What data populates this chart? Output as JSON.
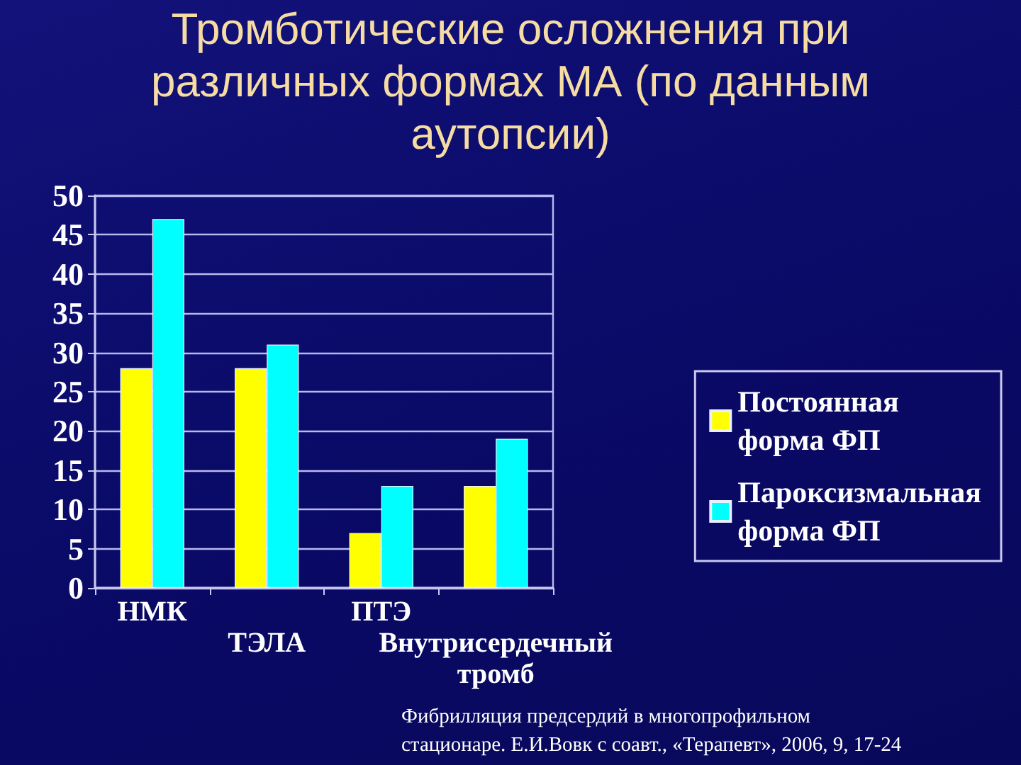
{
  "chart_data": {
    "type": "bar",
    "title": "Тромботические осложнения при различных формах МА (по данным аутопсии)",
    "categories": [
      "НМК",
      "ТЭЛА",
      "ПТЭ",
      "Внутрисердечный тромб"
    ],
    "series": [
      {
        "name": "Постоянная форма ФП",
        "color": "#ffff00",
        "values": [
          28,
          28,
          7,
          13
        ]
      },
      {
        "name": "Пароксизмальная форма ФП",
        "color": "#00ffff",
        "values": [
          47,
          31,
          13,
          19
        ]
      }
    ],
    "ylim": [
      0,
      50
    ],
    "yticks": [
      0,
      5,
      10,
      15,
      20,
      25,
      30,
      35,
      40,
      45,
      50
    ],
    "grid": "y",
    "legend": "right",
    "annotations": [
      "Фибрилляция предсердий в многопрофильном стационаре. Е.И.Вовк с соавт., «Терапевт», 2006, 9, 17-24"
    ]
  }
}
